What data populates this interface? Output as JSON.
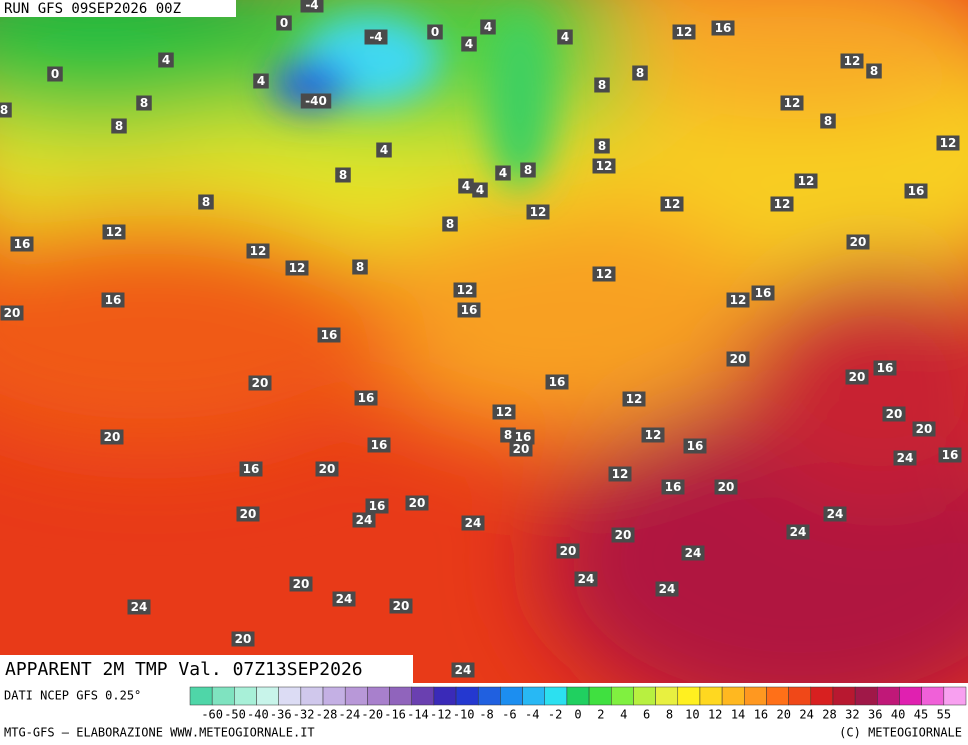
{
  "header": {
    "run": "RUN GFS 09SEP2026 00Z",
    "title": "APPARENT 2M TMP Val. 07Z13SEP2026"
  },
  "map_labels": [
    "-4",
    "0",
    "-4",
    "0",
    "4",
    "4",
    "4",
    "0",
    "4",
    "-40",
    "8",
    "8",
    "8",
    "4",
    "8",
    "8",
    "12",
    "16",
    "12",
    "8",
    "8",
    "8",
    "4",
    "12",
    "8",
    "12",
    "8",
    "12",
    "8",
    "4",
    "4",
    "4",
    "8",
    "12",
    "12",
    "12",
    "12",
    "16",
    "16",
    "12",
    "12",
    "12",
    "8",
    "20",
    "12",
    "12",
    "16",
    "12",
    "16",
    "16",
    "20",
    "16",
    "20",
    "20",
    "16",
    "20",
    "16",
    "16",
    "12",
    "12",
    "20",
    "20",
    "20",
    "16",
    "8",
    "16",
    "20",
    "12",
    "16",
    "24",
    "16",
    "16",
    "20",
    "12",
    "16",
    "20",
    "16",
    "20",
    "20",
    "24",
    "24",
    "24",
    "24",
    "20",
    "20",
    "24",
    "24",
    "24",
    "20",
    "24",
    "20",
    "24",
    "20",
    "24"
  ],
  "legend": {
    "source": "DATI NCEP GFS 0.25°",
    "labels": [
      "-60",
      "-50",
      "-40",
      "-36",
      "-32",
      "-28",
      "-24",
      "-20",
      "-16",
      "-14",
      "-12",
      "-10",
      "-8",
      "-6",
      "-4",
      "-2",
      "0",
      "2",
      "4",
      "6",
      "8",
      "10",
      "12",
      "14",
      "16",
      "20",
      "24",
      "28",
      "32",
      "36",
      "40",
      "45",
      "55"
    ],
    "colors": [
      "#4fd6a8",
      "#7fe3c0",
      "#a8f0d8",
      "#c8f4ea",
      "#dcdcf4",
      "#d0c8ec",
      "#c4b0e4",
      "#b898d8",
      "#a880cc",
      "#9064bc",
      "#6a40b0",
      "#3a2ab8",
      "#2438d0",
      "#2060e0",
      "#1c8ef0",
      "#28b8f4",
      "#2ce0f0",
      "#20d060",
      "#40e040",
      "#80f040",
      "#b8f040",
      "#e8f040",
      "#fff020",
      "#ffd820",
      "#ffb820",
      "#ff9820",
      "#ff7018",
      "#f04818",
      "#d82020",
      "#b81830",
      "#a01848",
      "#c01878",
      "#e020b0",
      "#f060d8",
      "#f8a0f0"
    ]
  },
  "footer": {
    "left": "MTG-GFS — ELABORAZIONE WWW.METEOGIORNALE.IT",
    "right": "(C) METEOGIORNALE"
  }
}
